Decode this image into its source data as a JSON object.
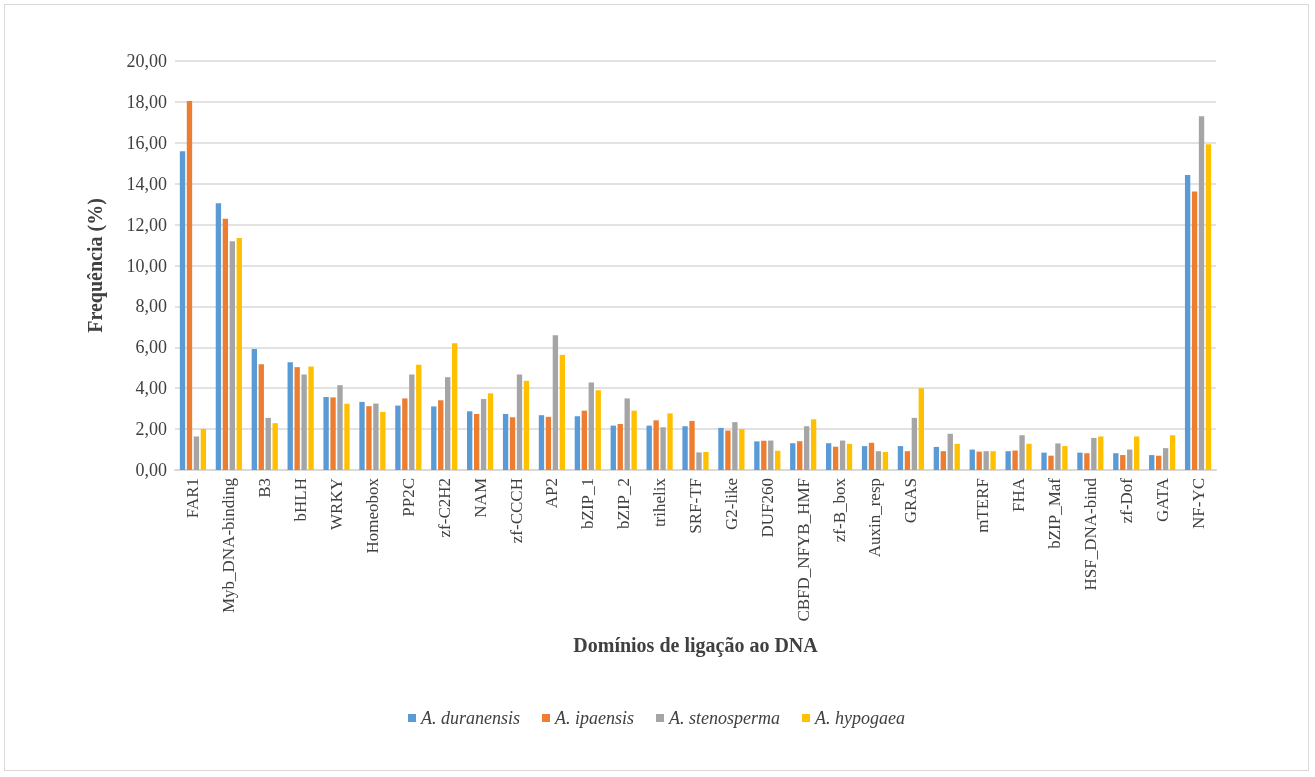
{
  "chart_data": {
    "type": "bar",
    "xlabel": "Domínios de ligação ao DNA",
    "ylabel": "Frequência (%)",
    "categories": [
      "FAR1",
      "Myb_DNA-binding",
      "B3",
      "bHLH",
      "WRKY",
      "Homeobox",
      "PP2C",
      "zf-C2H2",
      "NAM",
      "zf-CCCH",
      "AP2",
      "bZIP_1",
      "bZIP_2",
      "trihelix",
      "SRF-TF",
      "G2-like",
      "DUF260",
      "CBFD_NFYB_HMF",
      "zf-B_box",
      "Auxin_resp",
      "GRAS",
      null,
      "mTERF",
      "FHA",
      "bZIP_Maf",
      "HSF_DNA-bind",
      "zf-Dof",
      "GATA",
      "NF-YC"
    ],
    "series": [
      {
        "name": "A. duranensis",
        "color": "#5b9bd5",
        "values": [
          15.59,
          13.04,
          5.92,
          5.27,
          3.57,
          3.33,
          3.15,
          3.11,
          2.87,
          2.74,
          2.68,
          2.63,
          2.17,
          2.17,
          2.14,
          2.06,
          1.4,
          1.31,
          1.31,
          1.17,
          1.17,
          1.13,
          1.0,
          0.92,
          0.85,
          0.85,
          0.82,
          0.73,
          14.43
        ]
      },
      {
        "name": "A. ipaensis",
        "color": "#ed7d31",
        "values": [
          18.05,
          12.28,
          5.17,
          5.03,
          3.55,
          3.12,
          3.5,
          3.41,
          2.74,
          2.58,
          2.6,
          2.9,
          2.25,
          2.43,
          2.4,
          1.93,
          1.43,
          1.41,
          1.14,
          1.33,
          0.92,
          0.92,
          0.9,
          0.95,
          0.7,
          0.82,
          0.73,
          0.7,
          13.62
        ]
      },
      {
        "name": "A. stenosperma",
        "color": "#a5a5a5",
        "values": [
          1.64,
          11.18,
          2.55,
          4.67,
          4.15,
          3.25,
          4.67,
          4.54,
          3.47,
          4.67,
          6.59,
          4.28,
          3.5,
          2.09,
          0.86,
          2.34,
          1.44,
          2.14,
          1.44,
          0.92,
          2.55,
          1.77,
          0.92,
          1.7,
          1.3,
          1.57,
          1.0,
          1.07,
          17.3
        ]
      },
      {
        "name": "A. hypogaea",
        "color": "#ffc000",
        "values": [
          2.01,
          11.35,
          2.29,
          5.06,
          3.24,
          2.84,
          5.15,
          6.2,
          3.75,
          4.36,
          5.63,
          3.9,
          2.9,
          2.77,
          0.88,
          2.0,
          0.94,
          2.48,
          1.28,
          0.88,
          4.0,
          1.28,
          0.92,
          1.28,
          1.17,
          1.64,
          1.64,
          1.7,
          15.93
        ]
      }
    ],
    "ylim": [
      0,
      20
    ],
    "yticks": [
      {
        "value": 0,
        "label": "0,00"
      },
      {
        "value": 2,
        "label": "2,00"
      },
      {
        "value": 4,
        "label": "4,00"
      },
      {
        "value": 6,
        "label": "6,00"
      },
      {
        "value": 8,
        "label": "8,00"
      },
      {
        "value": 10,
        "label": "10,00"
      },
      {
        "value": 12,
        "label": "12,00"
      },
      {
        "value": 14,
        "label": "14,00"
      },
      {
        "value": 16,
        "label": "16,00"
      },
      {
        "value": 18,
        "label": "18,00"
      },
      {
        "value": 20,
        "label": "20,00"
      }
    ],
    "grid": "y",
    "legend": "bottom"
  }
}
